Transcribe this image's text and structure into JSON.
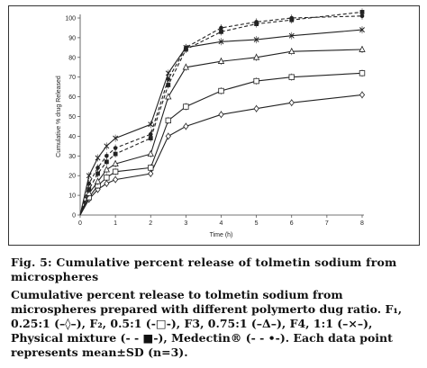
{
  "caption": {
    "title": "Fig. 5: Cumulative percent release of tolmetin sodium from microspheres",
    "body": "Cumulative percent release to tolmetin sodium from microspheres prepared with different polymerto dug ratio. F₁, 0.25:1 (–◊–), F₂, 0.5:1 (-□-), F3, 0.75:1 (–Δ–), F4, 1:1 (–×–), Physical mixture (- - ■-), Medectin® (- - •-). Each data point represents mean±SD (n=3)."
  },
  "chart_data": {
    "type": "line",
    "xlabel": "Time (h)",
    "ylabel": "Cumulative % drug Released",
    "xlim": [
      0,
      8
    ],
    "ylim": [
      0,
      100
    ],
    "xticks": [
      0,
      1,
      2,
      3,
      4,
      5,
      6,
      7,
      8
    ],
    "yticks": [
      0,
      10,
      20,
      30,
      40,
      50,
      60,
      70,
      80,
      90,
      100
    ],
    "grid": false,
    "x": [
      0,
      0.25,
      0.5,
      0.75,
      1,
      2,
      2.5,
      3,
      4,
      5,
      6,
      8
    ],
    "series": [
      {
        "name": "F₁, 0.25:1",
        "marker": "diamond",
        "dash": false,
        "color": "#222222",
        "values": [
          0,
          8,
          13,
          16,
          18,
          21,
          40,
          45,
          51,
          54,
          57,
          61
        ]
      },
      {
        "name": "F₂, 0.5:1",
        "marker": "square",
        "dash": false,
        "color": "#222222",
        "values": [
          0,
          9,
          15,
          19,
          22,
          24,
          48,
          55,
          63,
          68,
          70,
          72
        ]
      },
      {
        "name": "F3, 0.75:1",
        "marker": "triangle",
        "dash": false,
        "color": "#222222",
        "values": [
          0,
          11,
          17,
          23,
          26,
          31,
          60,
          75,
          78,
          80,
          83,
          84
        ]
      },
      {
        "name": "F4, 1:1",
        "marker": "cross",
        "dash": false,
        "color": "#222222",
        "values": [
          0,
          20,
          29,
          35,
          39,
          46,
          72,
          85,
          88,
          89,
          91,
          94
        ]
      },
      {
        "name": "Physical mixture",
        "marker": "filled-square",
        "dash": true,
        "color": "#222222",
        "values": [
          0,
          13,
          21,
          27,
          31,
          39,
          66,
          84,
          93,
          97,
          99,
          103
        ]
      },
      {
        "name": "Medectin®",
        "marker": "dot",
        "dash": true,
        "color": "#222222",
        "values": [
          0,
          16,
          24,
          30,
          34,
          41,
          69,
          85,
          95,
          98,
          100,
          101
        ]
      }
    ]
  }
}
